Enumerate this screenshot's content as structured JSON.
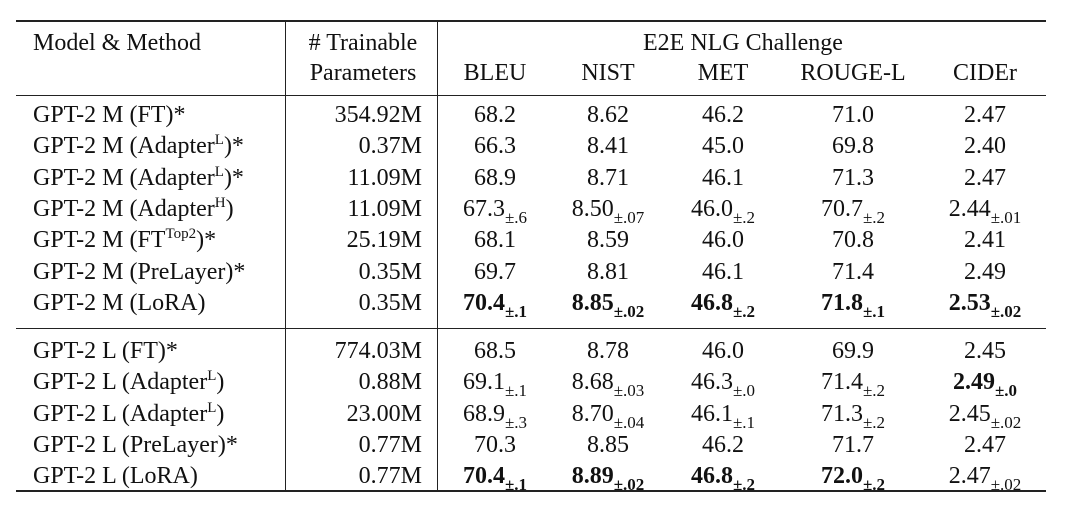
{
  "header": {
    "model_method": "Model & Method",
    "trainable_line1": "# Trainable",
    "trainable_line2": "Parameters",
    "group": "E2E NLG Challenge",
    "metrics": [
      "BLEU",
      "NIST",
      "MET",
      "ROUGE-L",
      "CIDEr"
    ]
  },
  "groups": [
    {
      "rows": [
        {
          "model": "GPT-2 M (FT",
          "sup": "",
          "suffix": ")*",
          "params": "354.92M",
          "cells": [
            {
              "v": "68.2",
              "s": "",
              "b": false
            },
            {
              "v": "8.62",
              "s": "",
              "b": false
            },
            {
              "v": "46.2",
              "s": "",
              "b": false
            },
            {
              "v": "71.0",
              "s": "",
              "b": false
            },
            {
              "v": "2.47",
              "s": "",
              "b": false
            }
          ]
        },
        {
          "model": "GPT-2 M (Adapter",
          "sup": "L",
          "suffix": ")*",
          "params": "0.37M",
          "cells": [
            {
              "v": "66.3",
              "s": "",
              "b": false
            },
            {
              "v": "8.41",
              "s": "",
              "b": false
            },
            {
              "v": "45.0",
              "s": "",
              "b": false
            },
            {
              "v": "69.8",
              "s": "",
              "b": false
            },
            {
              "v": "2.40",
              "s": "",
              "b": false
            }
          ]
        },
        {
          "model": "GPT-2 M (Adapter",
          "sup": "L",
          "suffix": ")*",
          "params": "11.09M",
          "cells": [
            {
              "v": "68.9",
              "s": "",
              "b": false
            },
            {
              "v": "8.71",
              "s": "",
              "b": false
            },
            {
              "v": "46.1",
              "s": "",
              "b": false
            },
            {
              "v": "71.3",
              "s": "",
              "b": false
            },
            {
              "v": "2.47",
              "s": "",
              "b": false
            }
          ]
        },
        {
          "model": "GPT-2 M (Adapter",
          "sup": "H",
          "suffix": ")",
          "params": "11.09M",
          "cells": [
            {
              "v": "67.3",
              "s": "±.6",
              "b": false
            },
            {
              "v": "8.50",
              "s": "±.07",
              "b": false
            },
            {
              "v": "46.0",
              "s": "±.2",
              "b": false
            },
            {
              "v": "70.7",
              "s": "±.2",
              "b": false
            },
            {
              "v": "2.44",
              "s": "±.01",
              "b": false
            }
          ]
        },
        {
          "model": "GPT-2 M (FT",
          "sup": "Top2",
          "suffix": ")*",
          "params": "25.19M",
          "cells": [
            {
              "v": "68.1",
              "s": "",
              "b": false
            },
            {
              "v": "8.59",
              "s": "",
              "b": false
            },
            {
              "v": "46.0",
              "s": "",
              "b": false
            },
            {
              "v": "70.8",
              "s": "",
              "b": false
            },
            {
              "v": "2.41",
              "s": "",
              "b": false
            }
          ]
        },
        {
          "model": "GPT-2 M (PreLayer)*",
          "sup": "",
          "suffix": "",
          "params": "0.35M",
          "cells": [
            {
              "v": "69.7",
              "s": "",
              "b": false
            },
            {
              "v": "8.81",
              "s": "",
              "b": false
            },
            {
              "v": "46.1",
              "s": "",
              "b": false
            },
            {
              "v": "71.4",
              "s": "",
              "b": false
            },
            {
              "v": "2.49",
              "s": "",
              "b": false
            }
          ]
        },
        {
          "model": "GPT-2 M (LoRA)",
          "sup": "",
          "suffix": "",
          "params": "0.35M",
          "cells": [
            {
              "v": "70.4",
              "s": "±.1",
              "b": true
            },
            {
              "v": "8.85",
              "s": "±.02",
              "b": true
            },
            {
              "v": "46.8",
              "s": "±.2",
              "b": true
            },
            {
              "v": "71.8",
              "s": "±.1",
              "b": true
            },
            {
              "v": "2.53",
              "s": "±.02",
              "b": true
            }
          ]
        }
      ]
    },
    {
      "rows": [
        {
          "model": "GPT-2 L (FT)*",
          "sup": "",
          "suffix": "",
          "params": "774.03M",
          "cells": [
            {
              "v": "68.5",
              "s": "",
              "b": false
            },
            {
              "v": "8.78",
              "s": "",
              "b": false
            },
            {
              "v": "46.0",
              "s": "",
              "b": false
            },
            {
              "v": "69.9",
              "s": "",
              "b": false
            },
            {
              "v": "2.45",
              "s": "",
              "b": false
            }
          ]
        },
        {
          "model": "GPT-2 L (Adapter",
          "sup": "L",
          "suffix": ")",
          "params": "0.88M",
          "cells": [
            {
              "v": "69.1",
              "s": "±.1",
              "b": false
            },
            {
              "v": "8.68",
              "s": "±.03",
              "b": false
            },
            {
              "v": "46.3",
              "s": "±.0",
              "b": false
            },
            {
              "v": "71.4",
              "s": "±.2",
              "b": false
            },
            {
              "v": "2.49",
              "s": "±.0",
              "b": true
            }
          ]
        },
        {
          "model": "GPT-2 L (Adapter",
          "sup": "L",
          "suffix": ")",
          "params": "23.00M",
          "cells": [
            {
              "v": "68.9",
              "s": "±.3",
              "b": false
            },
            {
              "v": "8.70",
              "s": "±.04",
              "b": false
            },
            {
              "v": "46.1",
              "s": "±.1",
              "b": false
            },
            {
              "v": "71.3",
              "s": "±.2",
              "b": false
            },
            {
              "v": "2.45",
              "s": "±.02",
              "b": false
            }
          ]
        },
        {
          "model": "GPT-2 L (PreLayer)*",
          "sup": "",
          "suffix": "",
          "params": "0.77M",
          "cells": [
            {
              "v": "70.3",
              "s": "",
              "b": false
            },
            {
              "v": "8.85",
              "s": "",
              "b": false
            },
            {
              "v": "46.2",
              "s": "",
              "b": false
            },
            {
              "v": "71.7",
              "s": "",
              "b": false
            },
            {
              "v": "2.47",
              "s": "",
              "b": false
            }
          ]
        },
        {
          "model": "GPT-2 L (LoRA)",
          "sup": "",
          "suffix": "",
          "params": "0.77M",
          "cells": [
            {
              "v": "70.4",
              "s": "±.1",
              "b": true
            },
            {
              "v": "8.89",
              "s": "±.02",
              "b": true
            },
            {
              "v": "46.8",
              "s": "±.2",
              "b": true
            },
            {
              "v": "72.0",
              "s": "±.2",
              "b": true
            },
            {
              "v": "2.47",
              "s": "±.02",
              "b": false
            }
          ]
        }
      ]
    }
  ]
}
